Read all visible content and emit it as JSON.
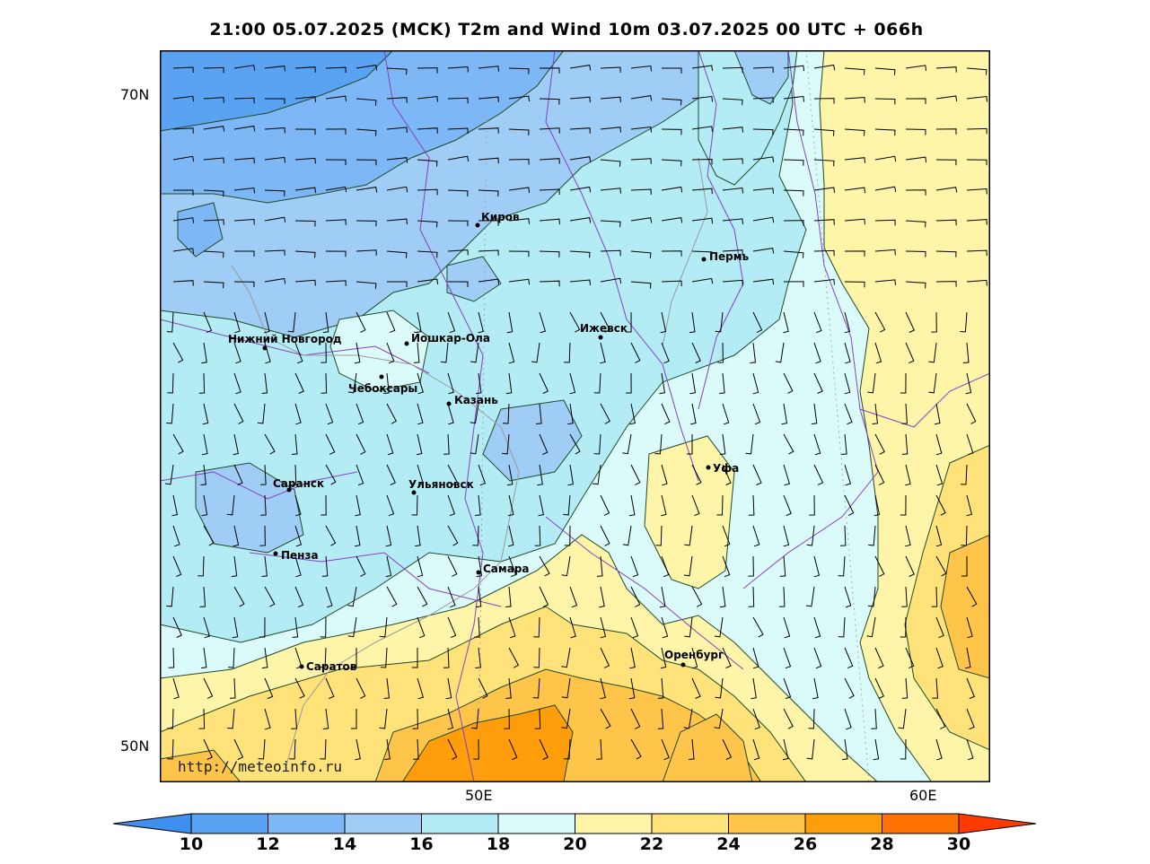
{
  "title": "21:00 05.07.2025 (MCK) T2m and Wind 10m 03.07.2025 00 UTC + 066h",
  "url_watermark": "http://meteoinfo.ru",
  "lat_labels": [
    {
      "id": "lat-70",
      "text": "70N"
    },
    {
      "id": "lat-50",
      "text": "50N"
    }
  ],
  "lon_labels": [
    {
      "id": "lon-50",
      "text": "50E"
    },
    {
      "id": "lon-60",
      "text": "60E"
    }
  ],
  "cities": [
    {
      "name": "Киров"
    },
    {
      "name": "Пермь"
    },
    {
      "name": "Нижний Новгород"
    },
    {
      "name": "Йошкар-Ола"
    },
    {
      "name": "Ижевск"
    },
    {
      "name": "Чебоксары"
    },
    {
      "name": "Казань"
    },
    {
      "name": "Саранск"
    },
    {
      "name": "Ульяновск"
    },
    {
      "name": "Уфа"
    },
    {
      "name": "Пенза"
    },
    {
      "name": "Самара"
    },
    {
      "name": "Оренбург"
    },
    {
      "name": "Саратов"
    }
  ],
  "colorbar": {
    "labels": [
      "10",
      "12",
      "14",
      "16",
      "18",
      "20",
      "22",
      "24",
      "26",
      "28",
      "30"
    ],
    "colors": [
      "#3f8fef",
      "#5aa2f2",
      "#7db7f5",
      "#9fcdf6",
      "#b4ecf5",
      "#dbfbfb",
      "#fff5a8",
      "#ffe27a",
      "#ffc44a",
      "#ff9d0a",
      "#ff7200",
      "#ff3a00"
    ]
  }
}
